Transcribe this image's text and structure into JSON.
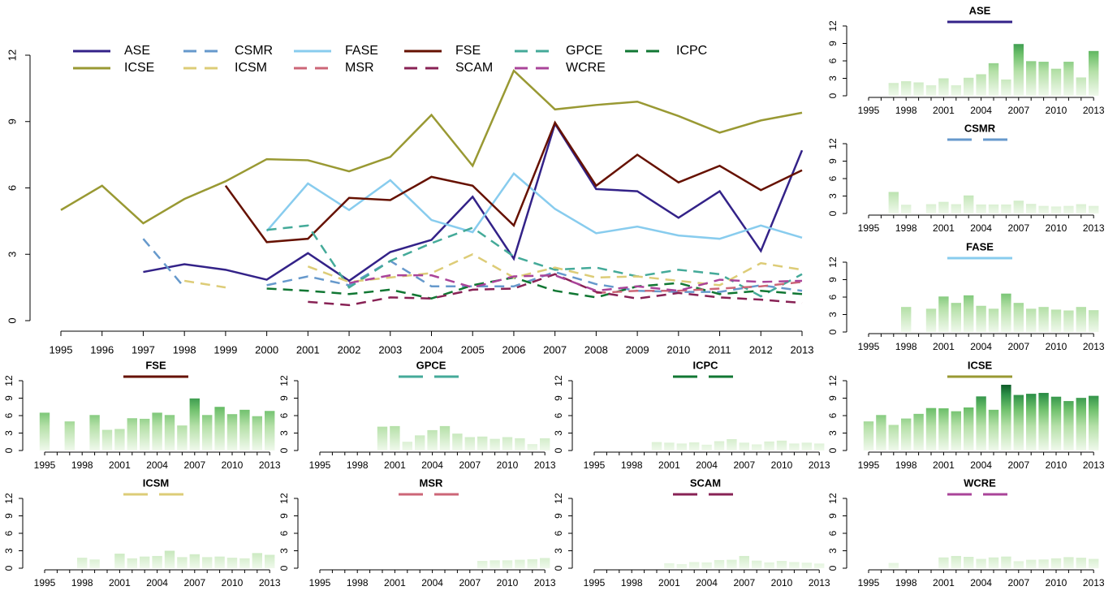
{
  "chart_data": [
    {
      "type": "line",
      "x": [
        1995,
        1996,
        1997,
        1998,
        1999,
        2000,
        2001,
        2002,
        2003,
        2004,
        2005,
        2006,
        2007,
        2008,
        2009,
        2010,
        2011,
        2012,
        2013
      ],
      "xlim": [
        1995,
        2013
      ],
      "xticks": [
        1995,
        1996,
        1997,
        1998,
        1999,
        2000,
        2001,
        2002,
        2003,
        2004,
        2005,
        2006,
        2007,
        2008,
        2009,
        2010,
        2011,
        2012,
        2013
      ],
      "ylim": [
        0,
        12
      ],
      "yticks": [
        0,
        3,
        6,
        9,
        12
      ],
      "series": [
        {
          "name": "ASE",
          "color": "#332288",
          "dashed": false,
          "values": [
            null,
            null,
            2.2,
            2.55,
            2.3,
            1.85,
            3.05,
            1.8,
            3.1,
            3.65,
            5.6,
            2.8,
            8.9,
            5.95,
            5.85,
            4.65,
            5.85,
            3.15,
            7.7
          ]
        },
        {
          "name": "CSMR",
          "color": "#6699CC",
          "dashed": true,
          "values": [
            null,
            null,
            3.7,
            1.5,
            null,
            1.6,
            2.0,
            1.6,
            2.7,
            1.55,
            1.55,
            1.55,
            2.2,
            1.65,
            1.35,
            1.3,
            1.3,
            1.6,
            1.35
          ]
        },
        {
          "name": "FASE",
          "color": "#88CCEE",
          "dashed": false,
          "values": [
            null,
            null,
            null,
            null,
            null,
            4.05,
            6.2,
            5.0,
            6.35,
            4.55,
            4.0,
            6.65,
            5.05,
            3.95,
            4.25,
            3.85,
            3.7,
            4.3,
            3.75
          ]
        },
        {
          "name": "FSE",
          "color": "#661100",
          "dashed": false,
          "values": [
            null,
            null,
            null,
            null,
            6.1,
            3.55,
            3.7,
            5.55,
            5.45,
            6.5,
            6.1,
            4.3,
            8.95,
            6.1,
            7.5,
            6.25,
            7.0,
            5.9,
            6.8
          ]
        },
        {
          "name": "GPCE",
          "color": "#44AA99",
          "dashed": true,
          "values": [
            null,
            null,
            null,
            null,
            null,
            4.1,
            4.3,
            1.5,
            2.7,
            3.5,
            4.2,
            2.9,
            2.3,
            2.4,
            2.0,
            2.3,
            2.1,
            1.1,
            2.1
          ]
        },
        {
          "name": "ICPC",
          "color": "#117733",
          "dashed": true,
          "values": [
            null,
            null,
            null,
            null,
            null,
            1.45,
            1.35,
            1.2,
            1.4,
            1.0,
            1.6,
            1.95,
            1.35,
            1.05,
            1.55,
            1.7,
            1.2,
            1.35,
            1.2
          ]
        },
        {
          "name": "ICSE",
          "color": "#999933",
          "dashed": false,
          "values": [
            5.0,
            6.1,
            4.4,
            5.5,
            6.3,
            7.3,
            7.25,
            6.75,
            7.4,
            9.3,
            7.0,
            11.3,
            9.55,
            9.75,
            9.9,
            9.25,
            8.5,
            9.05,
            9.4
          ]
        },
        {
          "name": "ICSM",
          "color": "#DDCC77",
          "dashed": true,
          "values": [
            null,
            null,
            null,
            1.8,
            1.5,
            null,
            2.45,
            1.75,
            1.95,
            2.15,
            3.0,
            1.95,
            2.4,
            1.95,
            2.0,
            1.8,
            1.6,
            2.6,
            2.3
          ]
        },
        {
          "name": "MSR",
          "color": "#CC6677",
          "dashed": true,
          "values": [
            null,
            null,
            null,
            null,
            null,
            null,
            null,
            null,
            null,
            null,
            null,
            null,
            null,
            1.25,
            1.35,
            1.35,
            1.45,
            1.55,
            1.75
          ]
        },
        {
          "name": "SCAM",
          "color": "#882255",
          "dashed": true,
          "values": [
            null,
            null,
            null,
            null,
            null,
            null,
            0.85,
            0.7,
            1.05,
            1.0,
            1.4,
            1.45,
            2.1,
            1.3,
            1.0,
            1.25,
            1.05,
            0.95,
            0.8
          ]
        },
        {
          "name": "WCRE",
          "color": "#AA4499",
          "dashed": true,
          "values": [
            null,
            null,
            null,
            null,
            null,
            null,
            null,
            1.7,
            2.05,
            2.05,
            1.5,
            2.0,
            2.05,
            1.35,
            1.55,
            1.35,
            1.85,
            1.75,
            1.8
          ]
        }
      ]
    },
    {
      "type": "bar",
      "title": "ASE",
      "color": "#332288",
      "dashed": false,
      "x": [
        1995,
        1996,
        1997,
        1998,
        1999,
        2000,
        2001,
        2002,
        2003,
        2004,
        2005,
        2006,
        2007,
        2008,
        2009,
        2010,
        2011,
        2012,
        2013
      ],
      "xticks": [
        1995,
        1998,
        2001,
        2004,
        2007,
        2010,
        2013
      ],
      "ylim": [
        0,
        12
      ],
      "yticks": [
        0,
        3,
        6,
        9,
        12
      ],
      "values": [
        null,
        null,
        2.2,
        2.5,
        2.3,
        1.8,
        3.0,
        1.8,
        3.1,
        3.7,
        5.6,
        2.8,
        8.9,
        5.95,
        5.85,
        4.65,
        5.85,
        3.15,
        7.7
      ]
    },
    {
      "type": "bar",
      "title": "CSMR",
      "color": "#6699CC",
      "dashed": true,
      "x": [
        1995,
        1996,
        1997,
        1998,
        1999,
        2000,
        2001,
        2002,
        2003,
        2004,
        2005,
        2006,
        2007,
        2008,
        2009,
        2010,
        2011,
        2012,
        2013
      ],
      "xticks": [
        1995,
        1998,
        2001,
        2004,
        2007,
        2010,
        2013
      ],
      "ylim": [
        0,
        12
      ],
      "yticks": [
        0,
        3,
        6,
        9,
        12
      ],
      "values": [
        null,
        null,
        3.7,
        1.5,
        null,
        1.6,
        2.0,
        1.6,
        3.1,
        1.55,
        1.55,
        1.55,
        2.2,
        1.65,
        1.3,
        1.2,
        1.3,
        1.6,
        1.3
      ]
    },
    {
      "type": "bar",
      "title": "FASE",
      "color": "#88CCEE",
      "dashed": false,
      "x": [
        1995,
        1996,
        1997,
        1998,
        1999,
        2000,
        2001,
        2002,
        2003,
        2004,
        2005,
        2006,
        2007,
        2008,
        2009,
        2010,
        2011,
        2012,
        2013
      ],
      "xticks": [
        1995,
        1998,
        2001,
        2004,
        2007,
        2010,
        2013
      ],
      "ylim": [
        0,
        12
      ],
      "yticks": [
        0,
        3,
        6,
        9,
        12
      ],
      "values": [
        null,
        null,
        null,
        4.3,
        null,
        4.0,
        6.1,
        5.0,
        6.3,
        4.5,
        4.0,
        6.6,
        5.0,
        4.0,
        4.3,
        3.85,
        3.7,
        4.3,
        3.75
      ]
    },
    {
      "type": "bar",
      "title": "FSE",
      "color": "#661100",
      "dashed": false,
      "x": [
        1995,
        1996,
        1997,
        1998,
        1999,
        2000,
        2001,
        2002,
        2003,
        2004,
        2005,
        2006,
        2007,
        2008,
        2009,
        2010,
        2011,
        2012,
        2013
      ],
      "xticks": [
        1995,
        1998,
        2001,
        2004,
        2007,
        2010,
        2013
      ],
      "ylim": [
        0,
        12
      ],
      "yticks": [
        0,
        3,
        6,
        9,
        12
      ],
      "values": [
        6.5,
        null,
        5.0,
        null,
        6.1,
        3.55,
        3.7,
        5.55,
        5.45,
        6.5,
        6.1,
        4.3,
        8.95,
        6.1,
        7.5,
        6.25,
        7.0,
        5.9,
        6.8
      ]
    },
    {
      "type": "bar",
      "title": "GPCE",
      "color": "#44AA99",
      "dashed": true,
      "x": [
        1995,
        1996,
        1997,
        1998,
        1999,
        2000,
        2001,
        2002,
        2003,
        2004,
        2005,
        2006,
        2007,
        2008,
        2009,
        2010,
        2011,
        2012,
        2013
      ],
      "xticks": [
        1995,
        1998,
        2001,
        2004,
        2007,
        2010,
        2013
      ],
      "ylim": [
        0,
        12
      ],
      "yticks": [
        0,
        3,
        6,
        9,
        12
      ],
      "values": [
        null,
        null,
        null,
        null,
        null,
        4.1,
        4.2,
        1.5,
        2.6,
        3.5,
        4.2,
        2.9,
        2.3,
        2.4,
        2.0,
        2.3,
        2.1,
        1.1,
        2.1
      ]
    },
    {
      "type": "bar",
      "title": "ICPC",
      "color": "#117733",
      "dashed": true,
      "x": [
        1995,
        1996,
        1997,
        1998,
        1999,
        2000,
        2001,
        2002,
        2003,
        2004,
        2005,
        2006,
        2007,
        2008,
        2009,
        2010,
        2011,
        2012,
        2013
      ],
      "xticks": [
        1995,
        1998,
        2001,
        2004,
        2007,
        2010,
        2013
      ],
      "ylim": [
        0,
        12
      ],
      "yticks": [
        0,
        3,
        6,
        9,
        12
      ],
      "values": [
        null,
        null,
        null,
        null,
        null,
        1.45,
        1.35,
        1.2,
        1.4,
        1.0,
        1.6,
        1.95,
        1.35,
        1.05,
        1.55,
        1.7,
        1.2,
        1.35,
        1.2
      ]
    },
    {
      "type": "bar",
      "title": "ICSE",
      "color": "#999933",
      "dashed": false,
      "x": [
        1995,
        1996,
        1997,
        1998,
        1999,
        2000,
        2001,
        2002,
        2003,
        2004,
        2005,
        2006,
        2007,
        2008,
        2009,
        2010,
        2011,
        2012,
        2013
      ],
      "xticks": [
        1995,
        1998,
        2001,
        2004,
        2007,
        2010,
        2013
      ],
      "ylim": [
        0,
        12
      ],
      "yticks": [
        0,
        3,
        6,
        9,
        12
      ],
      "values": [
        5.0,
        6.1,
        4.4,
        5.5,
        6.3,
        7.3,
        7.25,
        6.75,
        7.4,
        9.3,
        7.0,
        11.3,
        9.55,
        9.75,
        9.9,
        9.25,
        8.5,
        9.05,
        9.4
      ]
    },
    {
      "type": "bar",
      "title": "ICSM",
      "color": "#DDCC77",
      "dashed": true,
      "x": [
        1995,
        1996,
        1997,
        1998,
        1999,
        2000,
        2001,
        2002,
        2003,
        2004,
        2005,
        2006,
        2007,
        2008,
        2009,
        2010,
        2011,
        2012,
        2013
      ],
      "xticks": [
        1995,
        1998,
        2001,
        2004,
        2007,
        2010,
        2013
      ],
      "ylim": [
        0,
        12
      ],
      "yticks": [
        0,
        3,
        6,
        9,
        12
      ],
      "values": [
        null,
        null,
        null,
        1.8,
        1.5,
        null,
        2.5,
        1.7,
        2.0,
        2.1,
        3.0,
        1.9,
        2.4,
        1.9,
        2.0,
        1.8,
        1.7,
        2.6,
        2.3
      ]
    },
    {
      "type": "bar",
      "title": "MSR",
      "color": "#CC6677",
      "dashed": true,
      "x": [
        1995,
        1996,
        1997,
        1998,
        1999,
        2000,
        2001,
        2002,
        2003,
        2004,
        2005,
        2006,
        2007,
        2008,
        2009,
        2010,
        2011,
        2012,
        2013
      ],
      "xticks": [
        1995,
        1998,
        2001,
        2004,
        2007,
        2010,
        2013
      ],
      "ylim": [
        0,
        12
      ],
      "yticks": [
        0,
        3,
        6,
        9,
        12
      ],
      "values": [
        null,
        null,
        null,
        null,
        null,
        null,
        null,
        null,
        null,
        null,
        null,
        null,
        null,
        1.25,
        1.35,
        1.35,
        1.45,
        1.55,
        1.75
      ]
    },
    {
      "type": "bar",
      "title": "SCAM",
      "color": "#882255",
      "dashed": true,
      "x": [
        1995,
        1996,
        1997,
        1998,
        1999,
        2000,
        2001,
        2002,
        2003,
        2004,
        2005,
        2006,
        2007,
        2008,
        2009,
        2010,
        2011,
        2012,
        2013
      ],
      "xticks": [
        1995,
        1998,
        2001,
        2004,
        2007,
        2010,
        2013
      ],
      "ylim": [
        0,
        12
      ],
      "yticks": [
        0,
        3,
        6,
        9,
        12
      ],
      "values": [
        null,
        null,
        null,
        null,
        null,
        null,
        0.85,
        0.7,
        1.05,
        1.0,
        1.4,
        1.45,
        2.1,
        1.3,
        1.0,
        1.25,
        1.05,
        0.95,
        0.8
      ]
    },
    {
      "type": "bar",
      "title": "WCRE",
      "color": "#AA4499",
      "dashed": true,
      "x": [
        1995,
        1996,
        1997,
        1998,
        1999,
        2000,
        2001,
        2002,
        2003,
        2004,
        2005,
        2006,
        2007,
        2008,
        2009,
        2010,
        2011,
        2012,
        2013
      ],
      "xticks": [
        1995,
        1998,
        2001,
        2004,
        2007,
        2010,
        2013
      ],
      "ylim": [
        0,
        12
      ],
      "yticks": [
        0,
        3,
        6,
        9,
        12
      ],
      "values": [
        null,
        null,
        0.9,
        null,
        null,
        null,
        1.85,
        2.1,
        1.95,
        1.6,
        1.85,
        2.0,
        1.2,
        1.45,
        1.5,
        1.7,
        1.9,
        1.8,
        1.6
      ]
    }
  ]
}
